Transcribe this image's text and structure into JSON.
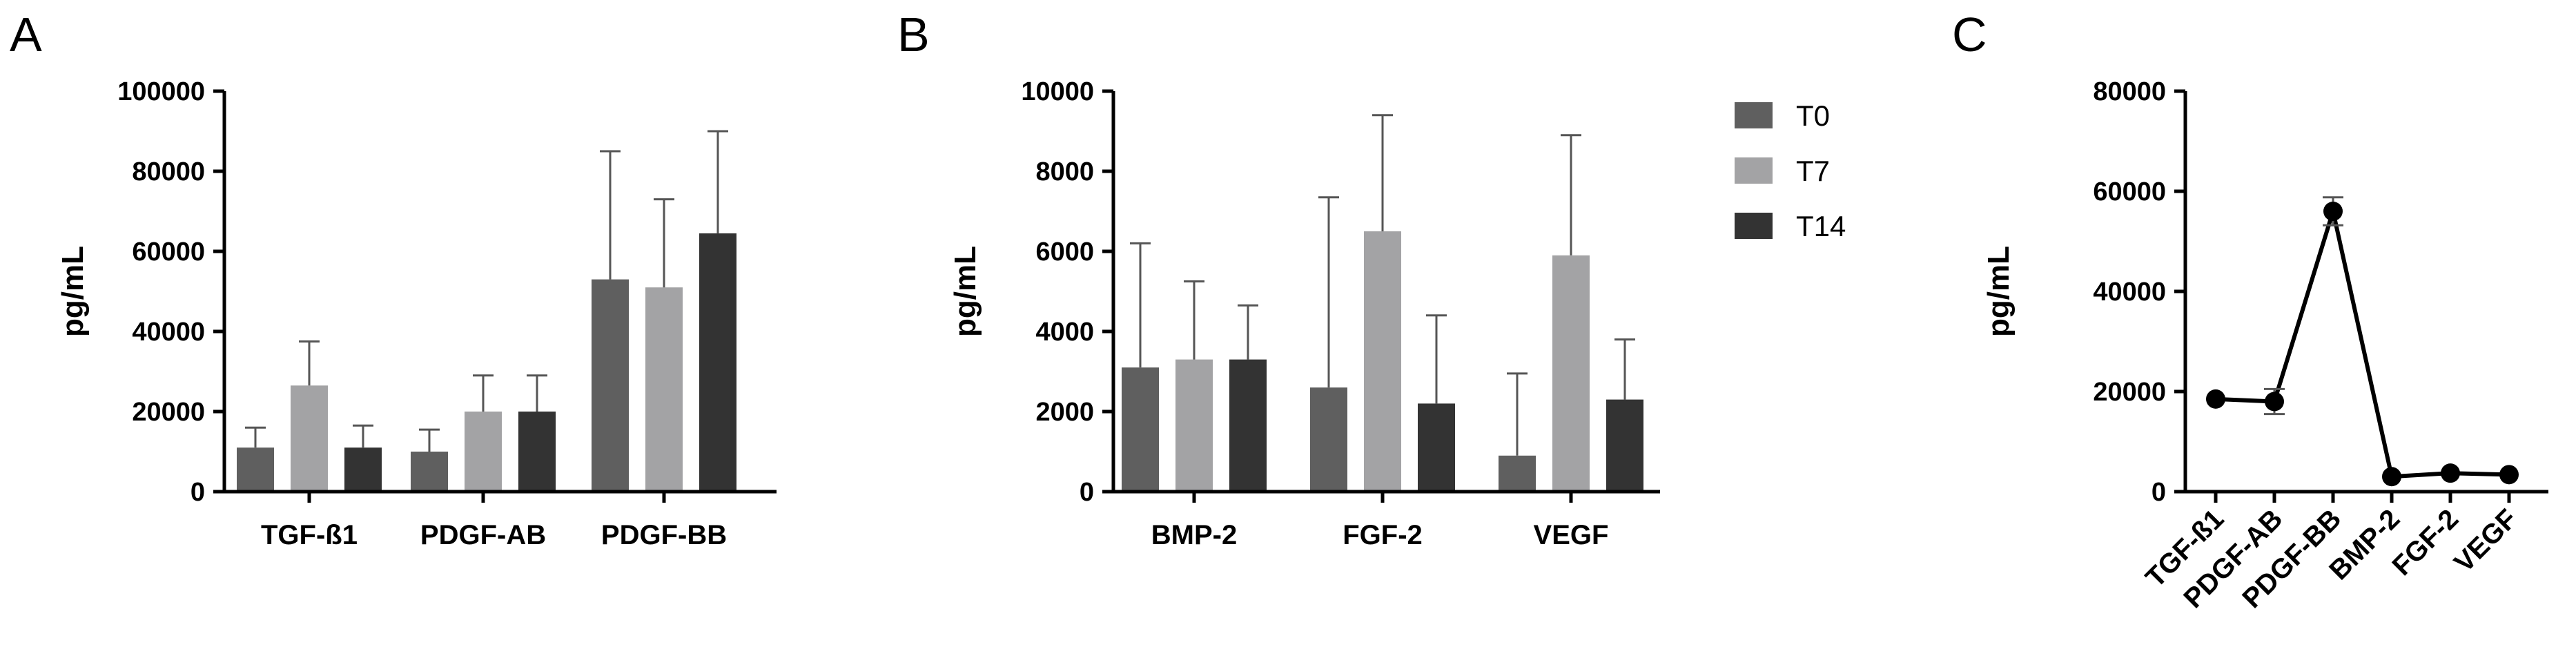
{
  "chart_data": [
    {
      "panel": "A",
      "type": "bar",
      "ylabel": "pg/mL",
      "ylim": [
        0,
        100000
      ],
      "yticks": [
        "0",
        "20000",
        "40000",
        "60000",
        "80000",
        "100000"
      ],
      "categories": [
        "TGF-ß1",
        "PDGF-AB",
        "PDGF-BB"
      ],
      "series": [
        {
          "name": "T0",
          "values": [
            11000,
            10000,
            53000
          ],
          "errors": [
            5000,
            5500,
            32000
          ]
        },
        {
          "name": "T7",
          "values": [
            26500,
            20000,
            51000
          ],
          "errors": [
            11000,
            9000,
            22000
          ]
        },
        {
          "name": "T14",
          "values": [
            11000,
            20000,
            64500
          ],
          "errors": [
            5500,
            9000,
            25500
          ]
        }
      ]
    },
    {
      "panel": "B",
      "type": "bar",
      "ylabel": "pg/mL",
      "ylim": [
        0,
        10000
      ],
      "yticks": [
        "0",
        "2000",
        "4000",
        "6000",
        "8000",
        "10000"
      ],
      "categories": [
        "BMP-2",
        "FGF-2",
        "VEGF"
      ],
      "series": [
        {
          "name": "T0",
          "values": [
            3100,
            2600,
            900
          ],
          "errors": [
            3100,
            4750,
            2050
          ]
        },
        {
          "name": "T7",
          "values": [
            3300,
            6500,
            5900
          ],
          "errors": [
            1950,
            2900,
            3000
          ]
        },
        {
          "name": "T14",
          "values": [
            3300,
            2200,
            2300
          ],
          "errors": [
            1350,
            2200,
            1500
          ]
        }
      ],
      "legend": {
        "position": "right",
        "entries": [
          "T0",
          "T7",
          "T14"
        ]
      }
    },
    {
      "panel": "C",
      "type": "line",
      "ylabel": "pg/mL",
      "ylim": [
        0,
        80000
      ],
      "yticks": [
        "0",
        "20000",
        "40000",
        "60000",
        "80000"
      ],
      "categories": [
        "TGF-ß1",
        "PDGF-AB",
        "PDGF-BB",
        "BMP-2",
        "FGF-2",
        "VEGF"
      ],
      "values": [
        18500,
        18000,
        56000,
        3000,
        3700,
        3400
      ],
      "errors": [
        0,
        2500,
        2800,
        0,
        0,
        0
      ]
    }
  ],
  "colors": {
    "T0": "#5f5f5f",
    "T7": "#a3a3a5",
    "T14": "#333333",
    "axis": "#000000",
    "error": "#555555"
  }
}
